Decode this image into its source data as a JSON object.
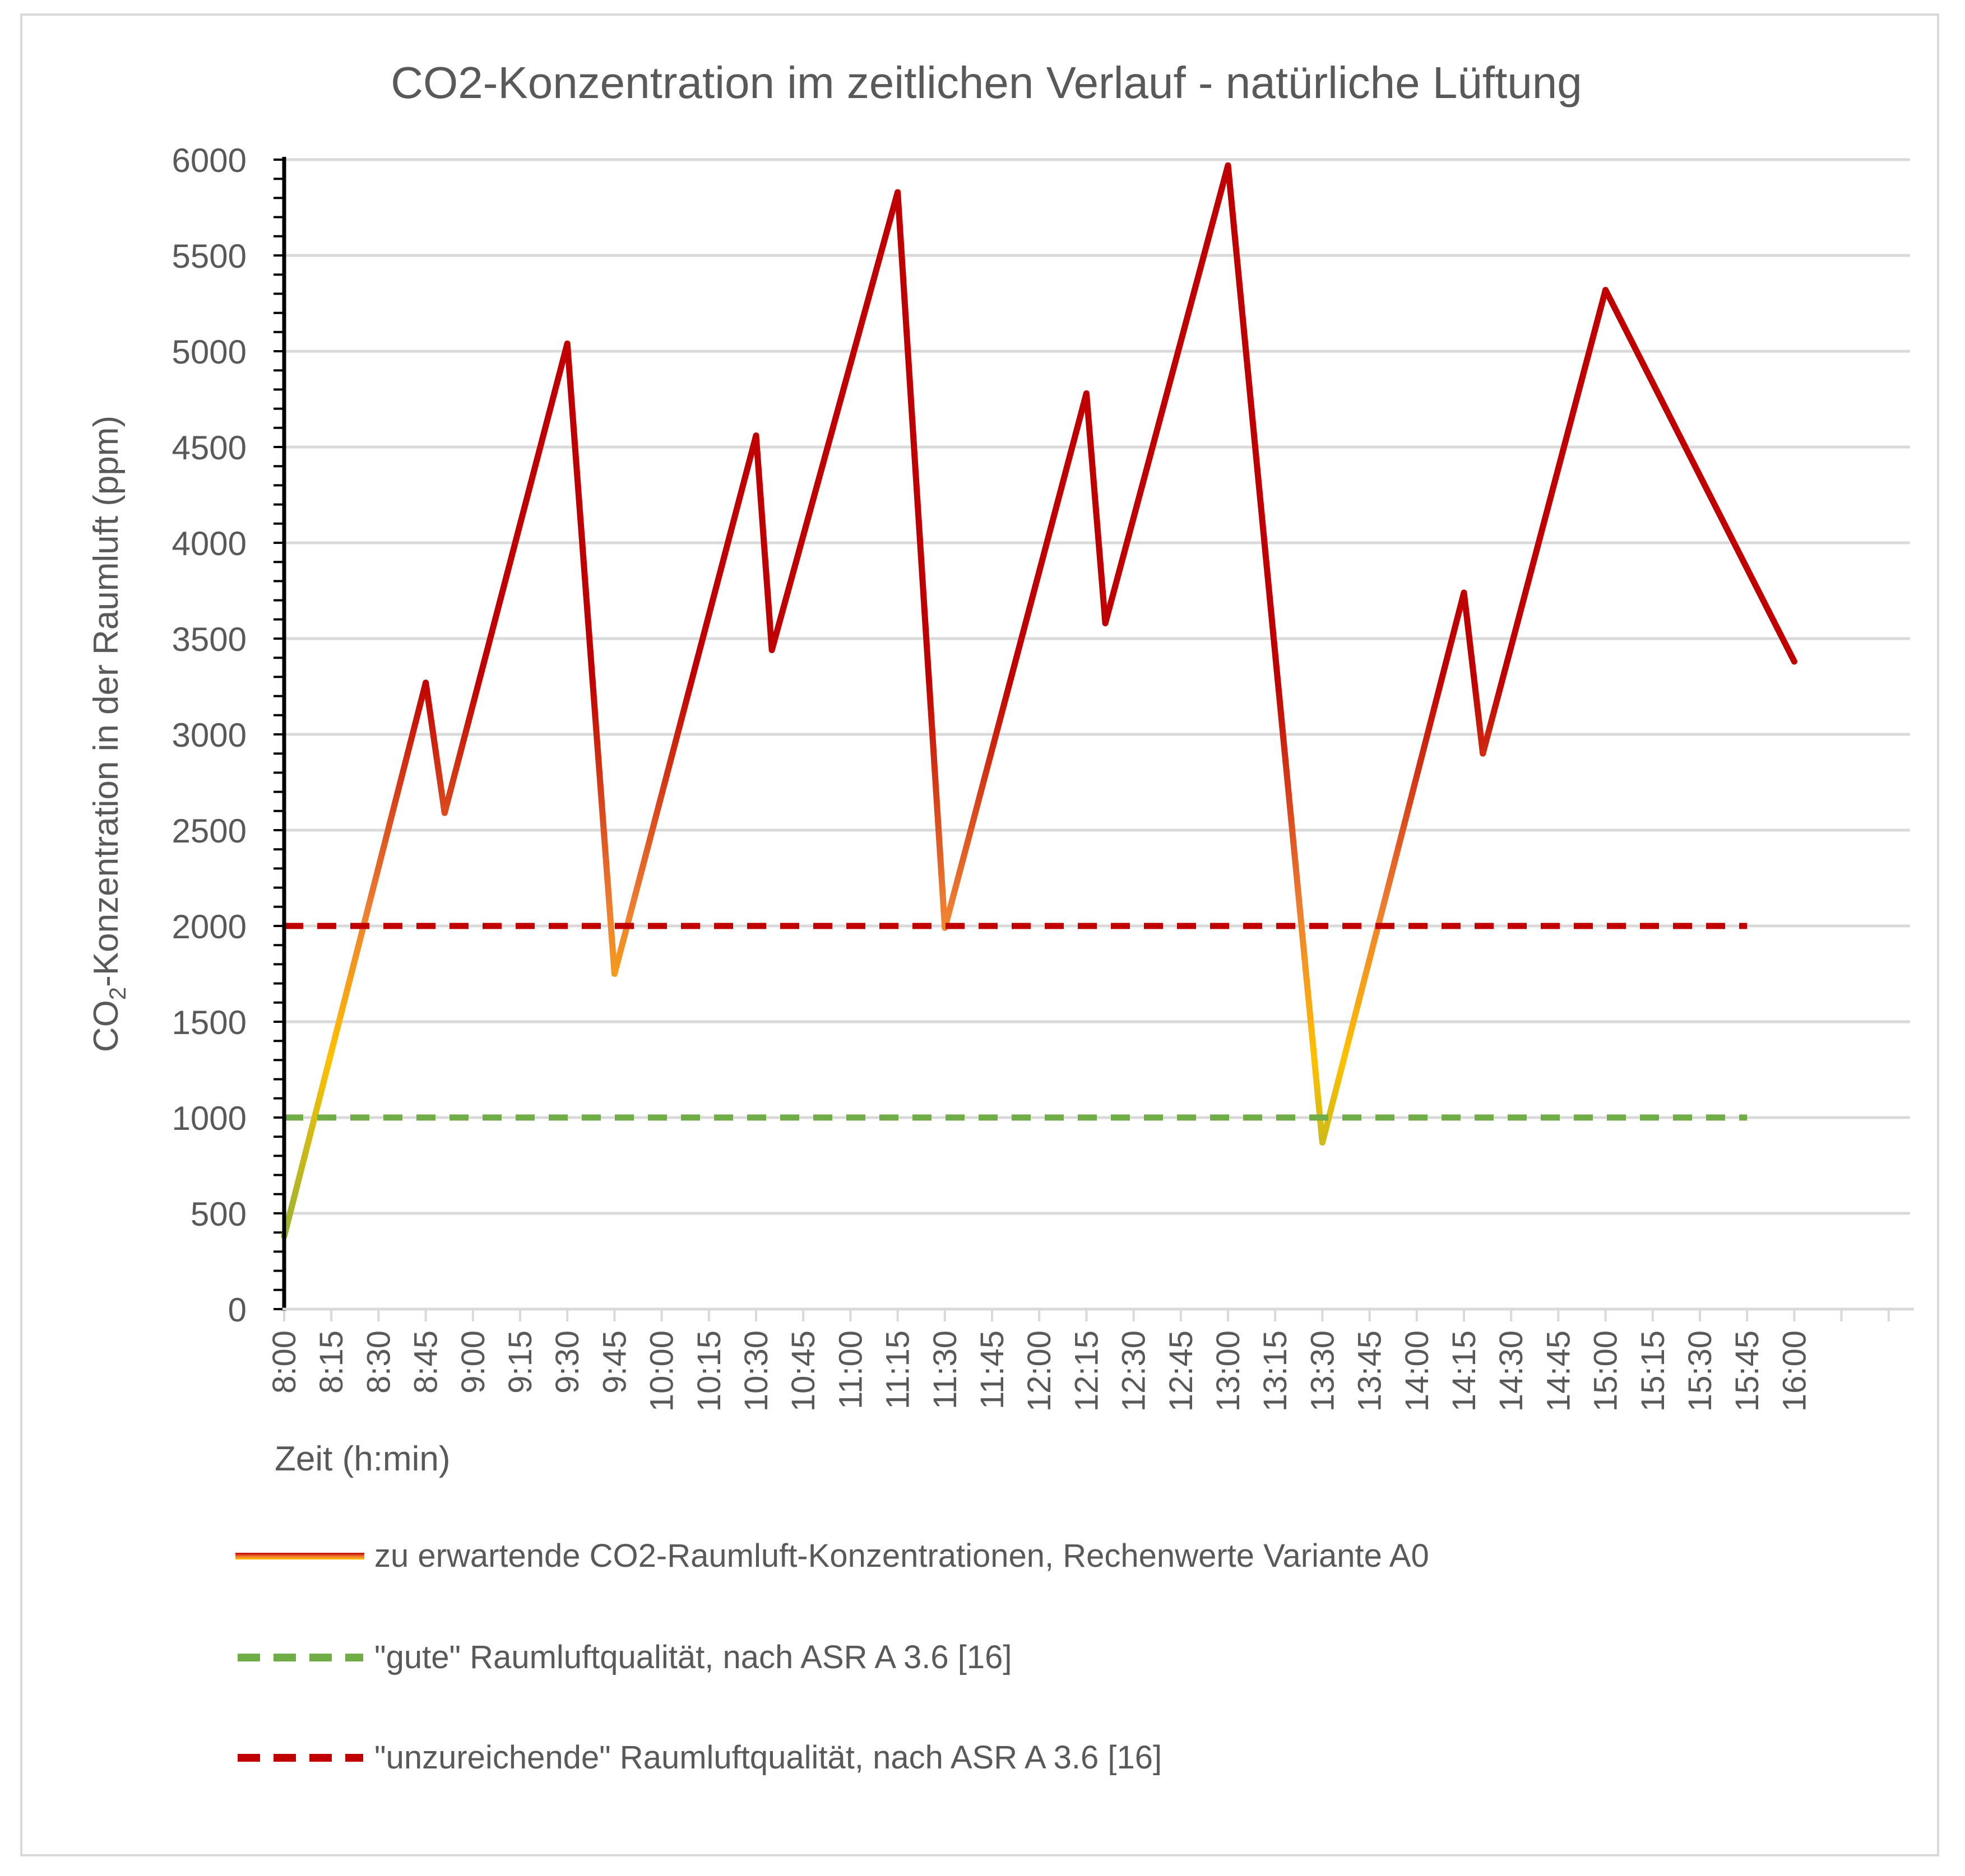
{
  "chart_data": {
    "type": "line",
    "title": "CO2-Konzentration im zeitlichen Verlauf - natürliche Lüftung",
    "xlabel": "Zeit (h:min)",
    "ylabel_parts": [
      "CO",
      "2",
      "-Konzentration in der Raumluft (ppm)"
    ],
    "ylim": [
      0,
      6000
    ],
    "yticks": [
      "0",
      "500",
      "1000",
      "1500",
      "2000",
      "2500",
      "3000",
      "3500",
      "4000",
      "4500",
      "5000",
      "5500",
      "6000"
    ],
    "xticks": [
      "8:00",
      "8:15",
      "8:30",
      "8:45",
      "9:00",
      "9:15",
      "9:30",
      "9:45",
      "10:00",
      "10:15",
      "10:30",
      "10:45",
      "11:00",
      "11:15",
      "11:30",
      "11:45",
      "12:00",
      "12:15",
      "12:30",
      "12:45",
      "13:00",
      "13:15",
      "13:30",
      "13:45",
      "14:00",
      "14:15",
      "14:30",
      "14:45",
      "15:00",
      "15:15",
      "15:30",
      "15:45",
      "16:00"
    ],
    "grid": true,
    "legend_position": "bottom",
    "series": [
      {
        "name": "zu erwartende CO2-Raumluft-Konzentrationen, Rechenwerte Variante A0",
        "style": "solid-gradient",
        "colors": [
          "#70ad47",
          "#ffc000",
          "#ed7d31",
          "#c00000"
        ],
        "x": [
          "8:00",
          "8:45",
          "8:51",
          "9:30",
          "9:45",
          "10:30",
          "10:35",
          "11:15",
          "11:30",
          "12:15",
          "12:21",
          "13:00",
          "13:30",
          "14:15",
          "14:21",
          "15:00",
          "16:00"
        ],
        "values": [
          380,
          3270,
          2590,
          5040,
          1750,
          4560,
          3440,
          5830,
          1990,
          4780,
          3580,
          5970,
          870,
          3740,
          2900,
          5320,
          3380
        ]
      },
      {
        "name": "\"gute\" Raumluftqualität, nach ASR A 3.6 [16]",
        "style": "dashed",
        "color": "#70ad47",
        "x": [
          "8:00",
          "15:45"
        ],
        "values": [
          1000,
          1000
        ]
      },
      {
        "name": "\"unzureichende\" Raumluftqualität, nach ASR A 3.6 [16]",
        "style": "dashed",
        "color": "#c00000",
        "x": [
          "8:00",
          "15:45"
        ],
        "values": [
          2000,
          2000
        ]
      }
    ]
  }
}
